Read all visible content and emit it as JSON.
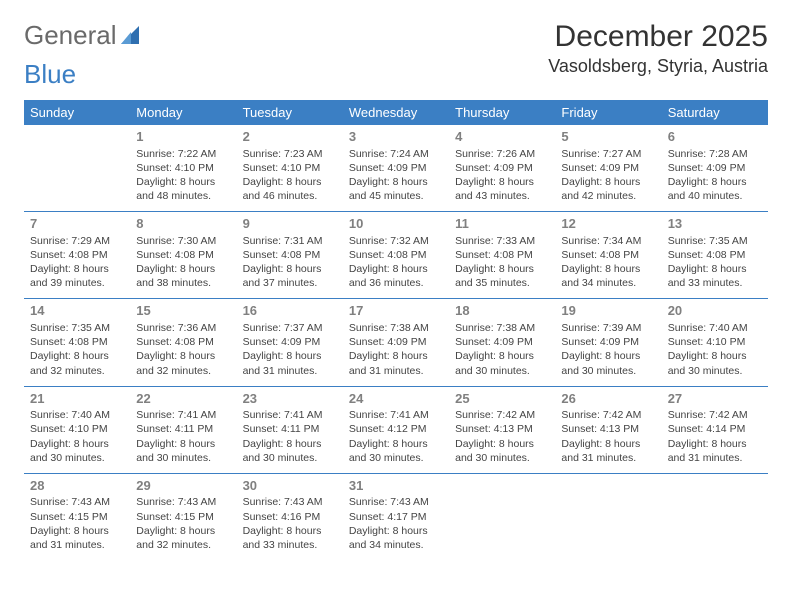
{
  "logo": {
    "text_a": "General",
    "text_b": "Blue"
  },
  "title": "December 2025",
  "location": "Vasoldsberg, Styria, Austria",
  "colors": {
    "header_bg": "#3b7fc4",
    "header_text": "#ffffff",
    "divider": "#3b7fc4",
    "daynum": "#808080",
    "body_text": "#444444",
    "background": "#ffffff"
  },
  "day_headers": [
    "Sunday",
    "Monday",
    "Tuesday",
    "Wednesday",
    "Thursday",
    "Friday",
    "Saturday"
  ],
  "weeks": [
    [
      {
        "num": "",
        "sunrise": "",
        "sunset": "",
        "daylight1": "",
        "daylight2": ""
      },
      {
        "num": "1",
        "sunrise": "Sunrise: 7:22 AM",
        "sunset": "Sunset: 4:10 PM",
        "daylight1": "Daylight: 8 hours",
        "daylight2": "and 48 minutes."
      },
      {
        "num": "2",
        "sunrise": "Sunrise: 7:23 AM",
        "sunset": "Sunset: 4:10 PM",
        "daylight1": "Daylight: 8 hours",
        "daylight2": "and 46 minutes."
      },
      {
        "num": "3",
        "sunrise": "Sunrise: 7:24 AM",
        "sunset": "Sunset: 4:09 PM",
        "daylight1": "Daylight: 8 hours",
        "daylight2": "and 45 minutes."
      },
      {
        "num": "4",
        "sunrise": "Sunrise: 7:26 AM",
        "sunset": "Sunset: 4:09 PM",
        "daylight1": "Daylight: 8 hours",
        "daylight2": "and 43 minutes."
      },
      {
        "num": "5",
        "sunrise": "Sunrise: 7:27 AM",
        "sunset": "Sunset: 4:09 PM",
        "daylight1": "Daylight: 8 hours",
        "daylight2": "and 42 minutes."
      },
      {
        "num": "6",
        "sunrise": "Sunrise: 7:28 AM",
        "sunset": "Sunset: 4:09 PM",
        "daylight1": "Daylight: 8 hours",
        "daylight2": "and 40 minutes."
      }
    ],
    [
      {
        "num": "7",
        "sunrise": "Sunrise: 7:29 AM",
        "sunset": "Sunset: 4:08 PM",
        "daylight1": "Daylight: 8 hours",
        "daylight2": "and 39 minutes."
      },
      {
        "num": "8",
        "sunrise": "Sunrise: 7:30 AM",
        "sunset": "Sunset: 4:08 PM",
        "daylight1": "Daylight: 8 hours",
        "daylight2": "and 38 minutes."
      },
      {
        "num": "9",
        "sunrise": "Sunrise: 7:31 AM",
        "sunset": "Sunset: 4:08 PM",
        "daylight1": "Daylight: 8 hours",
        "daylight2": "and 37 minutes."
      },
      {
        "num": "10",
        "sunrise": "Sunrise: 7:32 AM",
        "sunset": "Sunset: 4:08 PM",
        "daylight1": "Daylight: 8 hours",
        "daylight2": "and 36 minutes."
      },
      {
        "num": "11",
        "sunrise": "Sunrise: 7:33 AM",
        "sunset": "Sunset: 4:08 PM",
        "daylight1": "Daylight: 8 hours",
        "daylight2": "and 35 minutes."
      },
      {
        "num": "12",
        "sunrise": "Sunrise: 7:34 AM",
        "sunset": "Sunset: 4:08 PM",
        "daylight1": "Daylight: 8 hours",
        "daylight2": "and 34 minutes."
      },
      {
        "num": "13",
        "sunrise": "Sunrise: 7:35 AM",
        "sunset": "Sunset: 4:08 PM",
        "daylight1": "Daylight: 8 hours",
        "daylight2": "and 33 minutes."
      }
    ],
    [
      {
        "num": "14",
        "sunrise": "Sunrise: 7:35 AM",
        "sunset": "Sunset: 4:08 PM",
        "daylight1": "Daylight: 8 hours",
        "daylight2": "and 32 minutes."
      },
      {
        "num": "15",
        "sunrise": "Sunrise: 7:36 AM",
        "sunset": "Sunset: 4:08 PM",
        "daylight1": "Daylight: 8 hours",
        "daylight2": "and 32 minutes."
      },
      {
        "num": "16",
        "sunrise": "Sunrise: 7:37 AM",
        "sunset": "Sunset: 4:09 PM",
        "daylight1": "Daylight: 8 hours",
        "daylight2": "and 31 minutes."
      },
      {
        "num": "17",
        "sunrise": "Sunrise: 7:38 AM",
        "sunset": "Sunset: 4:09 PM",
        "daylight1": "Daylight: 8 hours",
        "daylight2": "and 31 minutes."
      },
      {
        "num": "18",
        "sunrise": "Sunrise: 7:38 AM",
        "sunset": "Sunset: 4:09 PM",
        "daylight1": "Daylight: 8 hours",
        "daylight2": "and 30 minutes."
      },
      {
        "num": "19",
        "sunrise": "Sunrise: 7:39 AM",
        "sunset": "Sunset: 4:09 PM",
        "daylight1": "Daylight: 8 hours",
        "daylight2": "and 30 minutes."
      },
      {
        "num": "20",
        "sunrise": "Sunrise: 7:40 AM",
        "sunset": "Sunset: 4:10 PM",
        "daylight1": "Daylight: 8 hours",
        "daylight2": "and 30 minutes."
      }
    ],
    [
      {
        "num": "21",
        "sunrise": "Sunrise: 7:40 AM",
        "sunset": "Sunset: 4:10 PM",
        "daylight1": "Daylight: 8 hours",
        "daylight2": "and 30 minutes."
      },
      {
        "num": "22",
        "sunrise": "Sunrise: 7:41 AM",
        "sunset": "Sunset: 4:11 PM",
        "daylight1": "Daylight: 8 hours",
        "daylight2": "and 30 minutes."
      },
      {
        "num": "23",
        "sunrise": "Sunrise: 7:41 AM",
        "sunset": "Sunset: 4:11 PM",
        "daylight1": "Daylight: 8 hours",
        "daylight2": "and 30 minutes."
      },
      {
        "num": "24",
        "sunrise": "Sunrise: 7:41 AM",
        "sunset": "Sunset: 4:12 PM",
        "daylight1": "Daylight: 8 hours",
        "daylight2": "and 30 minutes."
      },
      {
        "num": "25",
        "sunrise": "Sunrise: 7:42 AM",
        "sunset": "Sunset: 4:13 PM",
        "daylight1": "Daylight: 8 hours",
        "daylight2": "and 30 minutes."
      },
      {
        "num": "26",
        "sunrise": "Sunrise: 7:42 AM",
        "sunset": "Sunset: 4:13 PM",
        "daylight1": "Daylight: 8 hours",
        "daylight2": "and 31 minutes."
      },
      {
        "num": "27",
        "sunrise": "Sunrise: 7:42 AM",
        "sunset": "Sunset: 4:14 PM",
        "daylight1": "Daylight: 8 hours",
        "daylight2": "and 31 minutes."
      }
    ],
    [
      {
        "num": "28",
        "sunrise": "Sunrise: 7:43 AM",
        "sunset": "Sunset: 4:15 PM",
        "daylight1": "Daylight: 8 hours",
        "daylight2": "and 31 minutes."
      },
      {
        "num": "29",
        "sunrise": "Sunrise: 7:43 AM",
        "sunset": "Sunset: 4:15 PM",
        "daylight1": "Daylight: 8 hours",
        "daylight2": "and 32 minutes."
      },
      {
        "num": "30",
        "sunrise": "Sunrise: 7:43 AM",
        "sunset": "Sunset: 4:16 PM",
        "daylight1": "Daylight: 8 hours",
        "daylight2": "and 33 minutes."
      },
      {
        "num": "31",
        "sunrise": "Sunrise: 7:43 AM",
        "sunset": "Sunset: 4:17 PM",
        "daylight1": "Daylight: 8 hours",
        "daylight2": "and 34 minutes."
      },
      {
        "num": "",
        "sunrise": "",
        "sunset": "",
        "daylight1": "",
        "daylight2": ""
      },
      {
        "num": "",
        "sunrise": "",
        "sunset": "",
        "daylight1": "",
        "daylight2": ""
      },
      {
        "num": "",
        "sunrise": "",
        "sunset": "",
        "daylight1": "",
        "daylight2": ""
      }
    ]
  ]
}
